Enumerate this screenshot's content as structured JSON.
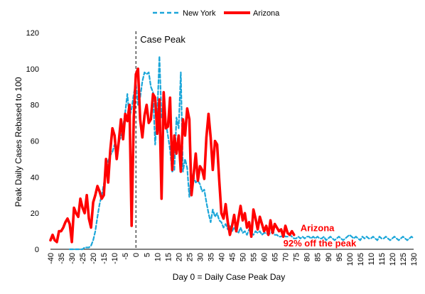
{
  "chart_data": {
    "type": "line",
    "xlabel": "Day 0 = Daily Case Peak Day",
    "ylabel": "Peak Daily Cases Rebased to 100",
    "xlim": [
      -40,
      130
    ],
    "ylim": [
      0,
      120
    ],
    "x_ticks": [
      -40,
      -35,
      -30,
      -25,
      -20,
      -15,
      -10,
      -5,
      0,
      5,
      10,
      15,
      20,
      25,
      30,
      35,
      40,
      45,
      50,
      55,
      60,
      65,
      70,
      75,
      80,
      85,
      90,
      95,
      100,
      105,
      110,
      115,
      120,
      125,
      130
    ],
    "y_ticks": [
      0,
      20,
      40,
      60,
      80,
      100,
      120
    ],
    "grid": false,
    "legend_position": "top-center",
    "annotations": {
      "case_peak": "Case Peak",
      "arizona_label": "Arizona",
      "pct_label": "92% off the peak"
    },
    "series": [
      {
        "name": "New York",
        "color": "#1ba6d9",
        "style": "dashed",
        "points": [
          [
            -31,
            0
          ],
          [
            -30,
            0
          ],
          [
            -29,
            0
          ],
          [
            -28,
            0
          ],
          [
            -27,
            0
          ],
          [
            -26,
            0
          ],
          [
            -25,
            0
          ],
          [
            -24,
            1
          ],
          [
            -23,
            1
          ],
          [
            -22,
            1
          ],
          [
            -21,
            2
          ],
          [
            -20,
            5
          ],
          [
            -19,
            10
          ],
          [
            -18,
            18
          ],
          [
            -17,
            25
          ],
          [
            -16,
            30
          ],
          [
            -15,
            36
          ],
          [
            -14,
            44
          ],
          [
            -13,
            49
          ],
          [
            -12,
            52
          ],
          [
            -11,
            54
          ],
          [
            -10,
            58
          ],
          [
            -9,
            55
          ],
          [
            -8,
            60
          ],
          [
            -7,
            62
          ],
          [
            -6,
            68
          ],
          [
            -5,
            76
          ],
          [
            -4,
            86
          ],
          [
            -3,
            73
          ],
          [
            -2,
            78
          ],
          [
            -1,
            86
          ],
          [
            0,
            92
          ],
          [
            1,
            80
          ],
          [
            2,
            84
          ],
          [
            3,
            93
          ],
          [
            4,
            98
          ],
          [
            5,
            97
          ],
          [
            6,
            98
          ],
          [
            7,
            90
          ],
          [
            8,
            87
          ],
          [
            9,
            58
          ],
          [
            10,
            75
          ],
          [
            11,
            107
          ],
          [
            12,
            73
          ],
          [
            13,
            72
          ],
          [
            14,
            70
          ],
          [
            15,
            63
          ],
          [
            16,
            55
          ],
          [
            17,
            43
          ],
          [
            18,
            44
          ],
          [
            19,
            73
          ],
          [
            20,
            67
          ],
          [
            21,
            98
          ],
          [
            22,
            43
          ],
          [
            23,
            50
          ],
          [
            24,
            45
          ],
          [
            25,
            29
          ],
          [
            26,
            42
          ],
          [
            27,
            40
          ],
          [
            28,
            37
          ],
          [
            29,
            38
          ],
          [
            30,
            36
          ],
          [
            31,
            32
          ],
          [
            32,
            33
          ],
          [
            33,
            26
          ],
          [
            34,
            20
          ],
          [
            35,
            15
          ],
          [
            36,
            22
          ],
          [
            37,
            18
          ],
          [
            38,
            20
          ],
          [
            39,
            16
          ],
          [
            40,
            15
          ],
          [
            41,
            12
          ],
          [
            42,
            14
          ],
          [
            43,
            11
          ],
          [
            44,
            13
          ],
          [
            45,
            10
          ],
          [
            46,
            12
          ],
          [
            47,
            10
          ],
          [
            48,
            9
          ],
          [
            49,
            12
          ],
          [
            50,
            9
          ],
          [
            51,
            10
          ],
          [
            52,
            8
          ],
          [
            53,
            11
          ],
          [
            54,
            9
          ],
          [
            55,
            8
          ],
          [
            56,
            10
          ],
          [
            57,
            9
          ],
          [
            58,
            10
          ],
          [
            59,
            8
          ],
          [
            60,
            9
          ],
          [
            61,
            9
          ],
          [
            62,
            8
          ],
          [
            63,
            9
          ],
          [
            64,
            10
          ],
          [
            65,
            8
          ],
          [
            66,
            8
          ],
          [
            67,
            7
          ],
          [
            68,
            7
          ],
          [
            69,
            8
          ],
          [
            70,
            7
          ],
          [
            71,
            7
          ],
          [
            72,
            8
          ],
          [
            73,
            7
          ],
          [
            74,
            6
          ],
          [
            75,
            6
          ],
          [
            76,
            7
          ],
          [
            77,
            6
          ],
          [
            78,
            7
          ],
          [
            79,
            6
          ],
          [
            80,
            7
          ],
          [
            81,
            7
          ],
          [
            82,
            6
          ],
          [
            83,
            7
          ],
          [
            84,
            6
          ],
          [
            85,
            7
          ],
          [
            86,
            6
          ],
          [
            87,
            6
          ],
          [
            88,
            7
          ],
          [
            89,
            5
          ],
          [
            90,
            6
          ],
          [
            91,
            7
          ],
          [
            92,
            6
          ],
          [
            93,
            5
          ],
          [
            94,
            6
          ],
          [
            95,
            7
          ],
          [
            96,
            6
          ],
          [
            97,
            5
          ],
          [
            98,
            6
          ],
          [
            99,
            7
          ],
          [
            100,
            8
          ],
          [
            101,
            7
          ],
          [
            102,
            6
          ],
          [
            103,
            7
          ],
          [
            104,
            6
          ],
          [
            105,
            5
          ],
          [
            106,
            7
          ],
          [
            107,
            6
          ],
          [
            108,
            7
          ],
          [
            109,
            6
          ],
          [
            110,
            6
          ],
          [
            111,
            7
          ],
          [
            112,
            6
          ],
          [
            113,
            5
          ],
          [
            114,
            7
          ],
          [
            115,
            6
          ],
          [
            116,
            6
          ],
          [
            117,
            7
          ],
          [
            118,
            6
          ],
          [
            119,
            5
          ],
          [
            120,
            6
          ],
          [
            121,
            7
          ],
          [
            122,
            6
          ],
          [
            123,
            5
          ],
          [
            124,
            6
          ],
          [
            125,
            7
          ],
          [
            126,
            6
          ],
          [
            127,
            5
          ],
          [
            128,
            6
          ],
          [
            129,
            7
          ],
          [
            130,
            6
          ]
        ]
      },
      {
        "name": "Arizona",
        "color": "#ff0000",
        "style": "solid",
        "points": [
          [
            -40,
            5
          ],
          [
            -39,
            8
          ],
          [
            -38,
            5
          ],
          [
            -37,
            4
          ],
          [
            -36,
            10
          ],
          [
            -35,
            10
          ],
          [
            -34,
            12
          ],
          [
            -33,
            15
          ],
          [
            -32,
            17
          ],
          [
            -31,
            14
          ],
          [
            -30,
            4
          ],
          [
            -29,
            23
          ],
          [
            -28,
            20
          ],
          [
            -27,
            18
          ],
          [
            -26,
            28
          ],
          [
            -25,
            23
          ],
          [
            -24,
            20
          ],
          [
            -23,
            30
          ],
          [
            -22,
            17
          ],
          [
            -21,
            12
          ],
          [
            -20,
            26
          ],
          [
            -19,
            30
          ],
          [
            -18,
            35
          ],
          [
            -17,
            32
          ],
          [
            -16,
            28
          ],
          [
            -15,
            30
          ],
          [
            -14,
            50
          ],
          [
            -13,
            37
          ],
          [
            -12,
            55
          ],
          [
            -11,
            67
          ],
          [
            -10,
            63
          ],
          [
            -9,
            50
          ],
          [
            -8,
            60
          ],
          [
            -7,
            72
          ],
          [
            -6,
            61
          ],
          [
            -5,
            75
          ],
          [
            -4,
            71
          ],
          [
            -3,
            80
          ],
          [
            -2,
            13
          ],
          [
            -1,
            73
          ],
          [
            0,
            97
          ],
          [
            1,
            100
          ],
          [
            2,
            72
          ],
          [
            3,
            62
          ],
          [
            4,
            74
          ],
          [
            5,
            80
          ],
          [
            6,
            70
          ],
          [
            7,
            72
          ],
          [
            8,
            86
          ],
          [
            9,
            84
          ],
          [
            10,
            64
          ],
          [
            11,
            83
          ],
          [
            12,
            28
          ],
          [
            13,
            87
          ],
          [
            14,
            67
          ],
          [
            15,
            68
          ],
          [
            16,
            84
          ],
          [
            17,
            44
          ],
          [
            18,
            63
          ],
          [
            19,
            53
          ],
          [
            20,
            63
          ],
          [
            21,
            43
          ],
          [
            22,
            72
          ],
          [
            23,
            63
          ],
          [
            24,
            78
          ],
          [
            25,
            72
          ],
          [
            26,
            30
          ],
          [
            27,
            41
          ],
          [
            28,
            53
          ],
          [
            29,
            38
          ],
          [
            30,
            46
          ],
          [
            31,
            44
          ],
          [
            32,
            39
          ],
          [
            33,
            62
          ],
          [
            34,
            75
          ],
          [
            35,
            62
          ],
          [
            36,
            44
          ],
          [
            37,
            60
          ],
          [
            38,
            58
          ],
          [
            39,
            38
          ],
          [
            40,
            20
          ],
          [
            41,
            17
          ],
          [
            42,
            25
          ],
          [
            43,
            15
          ],
          [
            44,
            8
          ],
          [
            45,
            13
          ],
          [
            46,
            19
          ],
          [
            47,
            10
          ],
          [
            48,
            17
          ],
          [
            49,
            24
          ],
          [
            50,
            16
          ],
          [
            51,
            20
          ],
          [
            52,
            12
          ],
          [
            53,
            15
          ],
          [
            54,
            7
          ],
          [
            55,
            22
          ],
          [
            56,
            17
          ],
          [
            57,
            11
          ],
          [
            58,
            18
          ],
          [
            59,
            14
          ],
          [
            60,
            10
          ],
          [
            61,
            13
          ],
          [
            62,
            8
          ],
          [
            63,
            16
          ],
          [
            64,
            9
          ],
          [
            65,
            14
          ],
          [
            66,
            12
          ],
          [
            67,
            10
          ],
          [
            68,
            11
          ],
          [
            69,
            7
          ],
          [
            70,
            13
          ],
          [
            71,
            9
          ],
          [
            72,
            8
          ],
          [
            73,
            10
          ],
          [
            74,
            8
          ]
        ]
      }
    ]
  }
}
